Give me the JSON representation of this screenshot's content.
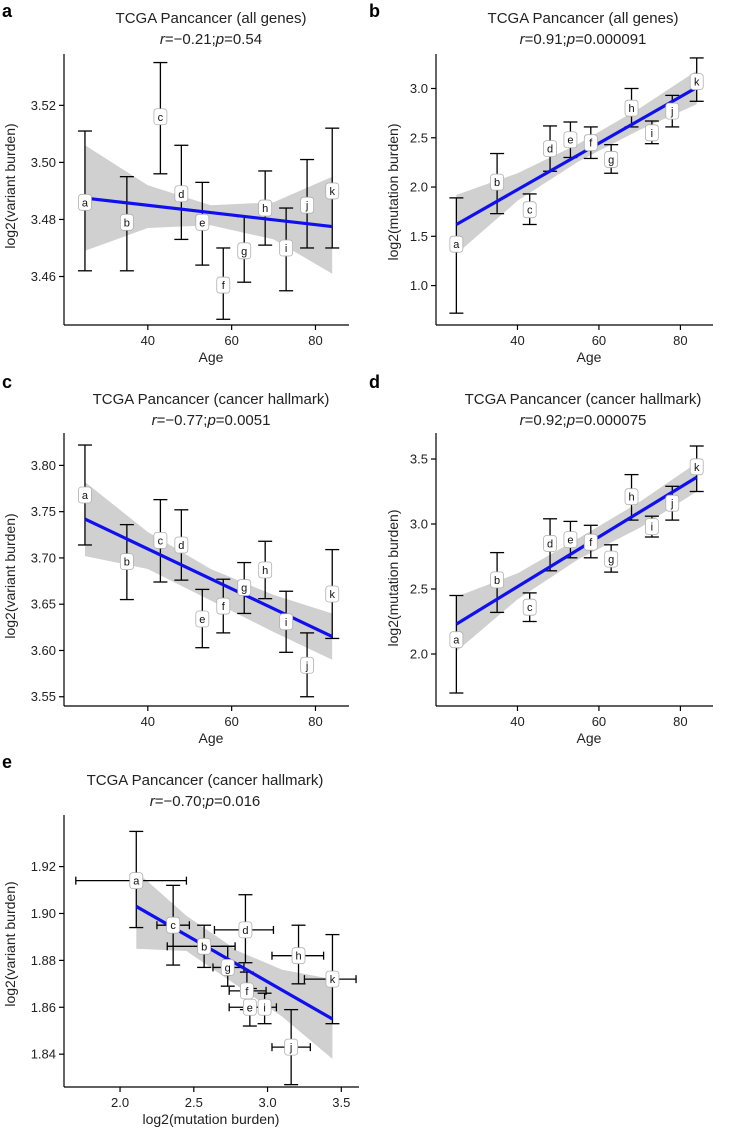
{
  "figure": {
    "panels": [
      "a",
      "b",
      "c",
      "d",
      "e"
    ]
  },
  "colors": {
    "fit_line": "#1010ee",
    "ci_band": "#c8c8c8",
    "error_bar": "#000000",
    "axis": "#000000",
    "label_box_fill": "#ffffff",
    "label_box_stroke": "#b0b0b0"
  },
  "chart_data": [
    {
      "panel": "a",
      "type": "scatter",
      "title": "TCGA Pancancer (all genes)",
      "stat": {
        "r_label": "r",
        "r": "=−0.21;",
        "p_label": "p",
        "p": "=0.54"
      },
      "xlabel": "Age",
      "ylabel": "log2(variant burden)",
      "xlim": [
        20,
        88
      ],
      "ylim": [
        3.443,
        3.538
      ],
      "xticks": [
        40,
        60,
        80
      ],
      "yticks": [
        3.46,
        3.48,
        3.5,
        3.52
      ],
      "yticklabels": [
        "3.46",
        "3.48",
        "3.50",
        "3.52"
      ],
      "xticklabels": [
        "40",
        "60",
        "80"
      ],
      "points": [
        {
          "label": "a",
          "x": 25,
          "y": 3.486,
          "ylo": 3.462,
          "yhi": 3.511
        },
        {
          "label": "b",
          "x": 35,
          "y": 3.479,
          "ylo": 3.462,
          "yhi": 3.495
        },
        {
          "label": "c",
          "x": 43,
          "y": 3.516,
          "ylo": 3.496,
          "yhi": 3.535
        },
        {
          "label": "d",
          "x": 48,
          "y": 3.489,
          "ylo": 3.473,
          "yhi": 3.506
        },
        {
          "label": "e",
          "x": 53,
          "y": 3.479,
          "ylo": 3.464,
          "yhi": 3.493
        },
        {
          "label": "f",
          "x": 58,
          "y": 3.457,
          "ylo": 3.445,
          "yhi": 3.47
        },
        {
          "label": "g",
          "x": 63,
          "y": 3.469,
          "ylo": 3.458,
          "yhi": 3.481
        },
        {
          "label": "h",
          "x": 68,
          "y": 3.484,
          "ylo": 3.471,
          "yhi": 3.497
        },
        {
          "label": "i",
          "x": 73,
          "y": 3.47,
          "ylo": 3.455,
          "yhi": 3.484
        },
        {
          "label": "j",
          "x": 78,
          "y": 3.485,
          "ylo": 3.47,
          "yhi": 3.501
        },
        {
          "label": "k",
          "x": 84,
          "y": 3.49,
          "ylo": 3.47,
          "yhi": 3.512
        }
      ],
      "fit": {
        "x": [
          25,
          84
        ],
        "y": [
          3.4875,
          3.4775
        ]
      },
      "band": {
        "x": [
          25,
          40,
          55,
          70,
          84
        ],
        "upper": [
          3.506,
          3.492,
          3.485,
          3.486,
          3.495
        ],
        "lower": [
          3.469,
          3.477,
          3.478,
          3.473,
          3.461
        ]
      }
    },
    {
      "panel": "b",
      "type": "scatter",
      "title": "TCGA Pancancer (all genes)",
      "stat": {
        "r_label": "r",
        "r": "=0.91;",
        "p_label": "p",
        "p": "=0.000091"
      },
      "xlabel": "Age",
      "ylabel": "log2(mutation burden)",
      "xlim": [
        20,
        88
      ],
      "ylim": [
        0.6,
        3.35
      ],
      "xticks": [
        40,
        60,
        80
      ],
      "yticks": [
        1.0,
        1.5,
        2.0,
        2.5,
        3.0
      ],
      "yticklabels": [
        "1.0",
        "1.5",
        "2.0",
        "2.5",
        "3.0"
      ],
      "xticklabels": [
        "40",
        "60",
        "80"
      ],
      "points": [
        {
          "label": "a",
          "x": 25,
          "y": 1.42,
          "ylo": 0.72,
          "yhi": 1.89
        },
        {
          "label": "b",
          "x": 35,
          "y": 2.05,
          "ylo": 1.73,
          "yhi": 2.34
        },
        {
          "label": "c",
          "x": 43,
          "y": 1.77,
          "ylo": 1.62,
          "yhi": 1.93
        },
        {
          "label": "d",
          "x": 48,
          "y": 2.39,
          "ylo": 2.16,
          "yhi": 2.62
        },
        {
          "label": "e",
          "x": 53,
          "y": 2.48,
          "ylo": 2.3,
          "yhi": 2.66
        },
        {
          "label": "f",
          "x": 58,
          "y": 2.45,
          "ylo": 2.29,
          "yhi": 2.61
        },
        {
          "label": "g",
          "x": 63,
          "y": 2.28,
          "ylo": 2.14,
          "yhi": 2.43
        },
        {
          "label": "h",
          "x": 68,
          "y": 2.8,
          "ylo": 2.61,
          "yhi": 3.0
        },
        {
          "label": "i",
          "x": 73,
          "y": 2.55,
          "ylo": 2.44,
          "yhi": 2.67
        },
        {
          "label": "j",
          "x": 78,
          "y": 2.77,
          "ylo": 2.61,
          "yhi": 2.93
        },
        {
          "label": "k",
          "x": 84,
          "y": 3.07,
          "ylo": 2.87,
          "yhi": 3.31
        }
      ],
      "fit": {
        "x": [
          25,
          84
        ],
        "y": [
          1.62,
          3.01
        ]
      },
      "band": {
        "x": [
          25,
          40,
          55,
          70,
          84
        ],
        "upper": [
          1.92,
          2.14,
          2.44,
          2.8,
          3.18
        ],
        "lower": [
          1.32,
          1.86,
          2.26,
          2.58,
          2.84
        ]
      }
    },
    {
      "panel": "c",
      "type": "scatter",
      "title": "TCGA Pancancer (cancer hallmark)",
      "stat": {
        "r_label": "r",
        "r": "=−0.77;",
        "p_label": "p",
        "p": "=0.0051"
      },
      "xlabel": "Age",
      "ylabel": "log2(variant burden)",
      "xlim": [
        20,
        88
      ],
      "ylim": [
        3.54,
        3.835
      ],
      "xticks": [
        40,
        60,
        80
      ],
      "yticks": [
        3.55,
        3.6,
        3.65,
        3.7,
        3.75,
        3.8
      ],
      "yticklabels": [
        "3.55",
        "3.60",
        "3.65",
        "3.70",
        "3.75",
        "3.80"
      ],
      "xticklabels": [
        "40",
        "60",
        "80"
      ],
      "points": [
        {
          "label": "a",
          "x": 25,
          "y": 3.768,
          "ylo": 3.714,
          "yhi": 3.822
        },
        {
          "label": "b",
          "x": 35,
          "y": 3.696,
          "ylo": 3.655,
          "yhi": 3.736
        },
        {
          "label": "c",
          "x": 43,
          "y": 3.719,
          "ylo": 3.674,
          "yhi": 3.763
        },
        {
          "label": "d",
          "x": 48,
          "y": 3.714,
          "ylo": 3.676,
          "yhi": 3.752
        },
        {
          "label": "e",
          "x": 53,
          "y": 3.634,
          "ylo": 3.603,
          "yhi": 3.666
        },
        {
          "label": "f",
          "x": 58,
          "y": 3.648,
          "ylo": 3.619,
          "yhi": 3.677
        },
        {
          "label": "g",
          "x": 63,
          "y": 3.668,
          "ylo": 3.64,
          "yhi": 3.695
        },
        {
          "label": "h",
          "x": 68,
          "y": 3.687,
          "ylo": 3.656,
          "yhi": 3.718
        },
        {
          "label": "i",
          "x": 73,
          "y": 3.631,
          "ylo": 3.598,
          "yhi": 3.664
        },
        {
          "label": "j",
          "x": 78,
          "y": 3.584,
          "ylo": 3.55,
          "yhi": 3.619
        },
        {
          "label": "k",
          "x": 84,
          "y": 3.661,
          "ylo": 3.613,
          "yhi": 3.709
        }
      ],
      "fit": {
        "x": [
          25,
          84
        ],
        "y": [
          3.742,
          3.615
        ]
      },
      "band": {
        "x": [
          25,
          40,
          55,
          70,
          84
        ],
        "upper": [
          3.782,
          3.728,
          3.688,
          3.66,
          3.64
        ],
        "lower": [
          3.702,
          3.688,
          3.654,
          3.62,
          3.59
        ]
      }
    },
    {
      "panel": "d",
      "type": "scatter",
      "title": "TCGA Pancancer (cancer hallmark)",
      "stat": {
        "r_label": "r",
        "r": "=0.92;",
        "p_label": "p",
        "p": "=0.000075"
      },
      "xlabel": "Age",
      "ylabel": "log2(mutation burden)",
      "xlim": [
        20,
        88
      ],
      "ylim": [
        1.6,
        3.7
      ],
      "xticks": [
        40,
        60,
        80
      ],
      "yticks": [
        2.0,
        2.5,
        3.0,
        3.5
      ],
      "yticklabels": [
        "2.0",
        "2.5",
        "3.0",
        "3.5"
      ],
      "xticklabels": [
        "40",
        "60",
        "80"
      ],
      "points": [
        {
          "label": "a",
          "x": 25,
          "y": 2.11,
          "ylo": 1.7,
          "yhi": 2.45
        },
        {
          "label": "b",
          "x": 35,
          "y": 2.57,
          "ylo": 2.32,
          "yhi": 2.78
        },
        {
          "label": "c",
          "x": 43,
          "y": 2.36,
          "ylo": 2.25,
          "yhi": 2.47
        },
        {
          "label": "d",
          "x": 48,
          "y": 2.85,
          "ylo": 2.64,
          "yhi": 3.04
        },
        {
          "label": "e",
          "x": 53,
          "y": 2.88,
          "ylo": 2.74,
          "yhi": 3.02
        },
        {
          "label": "f",
          "x": 58,
          "y": 2.86,
          "ylo": 2.74,
          "yhi": 2.99
        },
        {
          "label": "g",
          "x": 63,
          "y": 2.73,
          "ylo": 2.63,
          "yhi": 2.84
        },
        {
          "label": "h",
          "x": 68,
          "y": 3.21,
          "ylo": 3.03,
          "yhi": 3.38
        },
        {
          "label": "i",
          "x": 73,
          "y": 2.98,
          "ylo": 2.9,
          "yhi": 3.06
        },
        {
          "label": "j",
          "x": 78,
          "y": 3.16,
          "ylo": 3.03,
          "yhi": 3.29
        },
        {
          "label": "k",
          "x": 84,
          "y": 3.44,
          "ylo": 3.25,
          "yhi": 3.6
        }
      ],
      "fit": {
        "x": [
          25,
          84
        ],
        "y": [
          2.23,
          3.36
        ]
      },
      "band": {
        "x": [
          25,
          40,
          55,
          70,
          84
        ],
        "upper": [
          2.44,
          2.62,
          2.89,
          3.17,
          3.47
        ],
        "lower": [
          2.02,
          2.42,
          2.73,
          2.97,
          3.25
        ]
      }
    },
    {
      "panel": "e",
      "type": "scatter",
      "title": "TCGA Pancancer (cancer hallmark)",
      "stat": {
        "r_label": "r",
        "r": "=−0.70;",
        "p_label": "p",
        "p": "=0.016"
      },
      "xlabel": "log2(mutation burden)",
      "ylabel": "log2(variant burden)",
      "xlim": [
        1.62,
        3.62
      ],
      "ylim": [
        1.826,
        1.942
      ],
      "xticks": [
        2.0,
        2.5,
        3.0,
        3.5
      ],
      "yticks": [
        1.84,
        1.86,
        1.88,
        1.9,
        1.92
      ],
      "yticklabels": [
        "1.84",
        "1.86",
        "1.88",
        "1.90",
        "1.92"
      ],
      "xticklabels": [
        "2.0",
        "2.5",
        "3.0",
        "3.5"
      ],
      "points": [
        {
          "label": "a",
          "x": 2.11,
          "y": 1.914,
          "ylo": 1.894,
          "yhi": 1.935,
          "xlo": 1.7,
          "xhi": 2.45
        },
        {
          "label": "b",
          "x": 2.57,
          "y": 1.886,
          "ylo": 1.877,
          "yhi": 1.895,
          "xlo": 2.32,
          "xhi": 2.78
        },
        {
          "label": "c",
          "x": 2.36,
          "y": 1.895,
          "ylo": 1.878,
          "yhi": 1.912,
          "xlo": 2.25,
          "xhi": 2.47
        },
        {
          "label": "d",
          "x": 2.85,
          "y": 1.893,
          "ylo": 1.879,
          "yhi": 1.908,
          "xlo": 2.64,
          "xhi": 3.04
        },
        {
          "label": "e",
          "x": 2.88,
          "y": 1.86,
          "ylo": 1.852,
          "yhi": 1.868,
          "xlo": 2.74,
          "xhi": 3.02
        },
        {
          "label": "f",
          "x": 2.86,
          "y": 1.867,
          "ylo": 1.859,
          "yhi": 1.875,
          "xlo": 2.74,
          "xhi": 2.99
        },
        {
          "label": "g",
          "x": 2.73,
          "y": 1.877,
          "ylo": 1.869,
          "yhi": 1.886,
          "xlo": 2.63,
          "xhi": 2.84
        },
        {
          "label": "h",
          "x": 3.21,
          "y": 1.882,
          "ylo": 1.87,
          "yhi": 1.895,
          "xlo": 3.03,
          "xhi": 3.38
        },
        {
          "label": "i",
          "x": 2.98,
          "y": 1.86,
          "ylo": 1.853,
          "yhi": 1.866,
          "xlo": 2.9,
          "xhi": 3.06
        },
        {
          "label": "j",
          "x": 3.16,
          "y": 1.843,
          "ylo": 1.827,
          "yhi": 1.859,
          "xlo": 3.03,
          "xhi": 3.29
        },
        {
          "label": "k",
          "x": 3.44,
          "y": 1.872,
          "ylo": 1.853,
          "yhi": 1.891,
          "xlo": 3.25,
          "xhi": 3.6
        }
      ],
      "fit": {
        "x": [
          2.11,
          3.44
        ],
        "y": [
          1.903,
          1.855
        ]
      },
      "band": {
        "x": [
          2.11,
          2.45,
          2.8,
          3.1,
          3.44
        ],
        "upper": [
          1.918,
          1.899,
          1.884,
          1.876,
          1.872
        ],
        "lower": [
          1.885,
          1.884,
          1.869,
          1.856,
          1.838
        ]
      }
    }
  ]
}
